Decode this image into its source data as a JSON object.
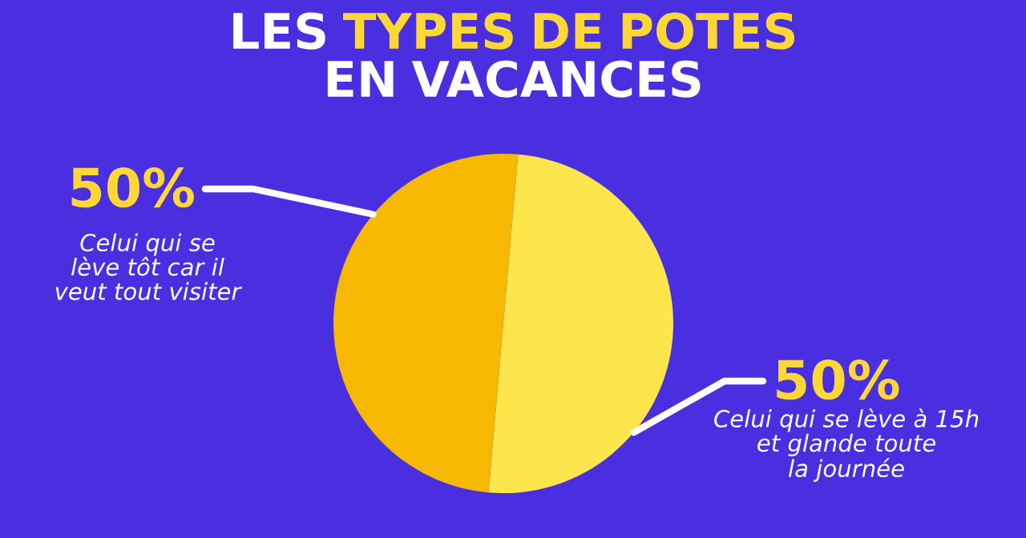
{
  "chart_data": {
    "type": "pie",
    "title": "LES TYPES DE POTES\nEN VACANCES",
    "categories": [
      "Celui qui se\nlève tôt car il\nveut tout visiter",
      "Celui qui se lève à 15h\net glande toute\nla journée"
    ],
    "values": [
      50,
      50
    ],
    "colors": [
      "#f6b800",
      "#fde54c"
    ],
    "value_labels": [
      "50%",
      "50%"
    ]
  }
}
